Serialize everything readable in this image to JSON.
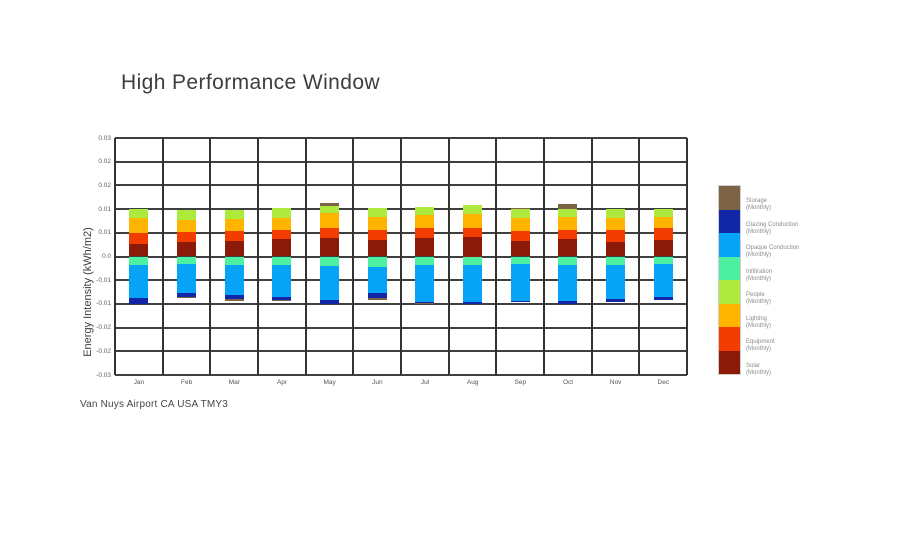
{
  "title": "High Performance Window",
  "caption": "Van Nuys Airport CA USA TMY3",
  "chart_data": {
    "type": "bar",
    "stacked": true,
    "title": "High Performance Window",
    "xlabel": "",
    "ylabel": "Energy Intensity (kWh/m2)",
    "ylim": [
      -0.03,
      0.03
    ],
    "ytick_step": 0.006,
    "ytick_labels": [
      "0.03",
      "0.02",
      "0.02",
      "0.01",
      "0.01",
      "0.0",
      "-0.01",
      "-0.01",
      "-0.02",
      "-0.02",
      "-0.03"
    ],
    "grid": true,
    "legend_position": "right",
    "categories": [
      "Jan",
      "Feb",
      "Mar",
      "Apr",
      "May",
      "Jun",
      "Jul",
      "Aug",
      "Sep",
      "Oct",
      "Nov",
      "Dec"
    ],
    "series": [
      {
        "name": "Storage",
        "legend_label": "Storage",
        "legend_sublabel": "(Monthly)",
        "color": "#7d6345",
        "values": [
          0.0,
          -0.0004,
          -0.0005,
          -0.0003,
          0.0006,
          -0.0004,
          -0.0002,
          0.0,
          0.0003,
          0.0014,
          0.0,
          0.0
        ]
      },
      {
        "name": "Glazing Conduction",
        "legend_label": "Glazing Conduction",
        "legend_sublabel": "(Monthly)",
        "color": "#1226a8",
        "values": [
          -0.0014,
          -0.001,
          -0.0011,
          -0.0007,
          -0.0011,
          -0.0013,
          -0.0004,
          -0.0004,
          -0.0004,
          -0.0007,
          -0.0007,
          -0.0008
        ]
      },
      {
        "name": "Opaque Conduction",
        "legend_label": "Opaque Conduction",
        "legend_sublabel": "(Monthly)",
        "color": "#07a3f7",
        "values": [
          -0.0084,
          -0.0073,
          -0.0075,
          -0.0081,
          -0.0086,
          -0.0067,
          -0.0093,
          -0.0094,
          -0.0092,
          -0.0092,
          -0.0086,
          -0.0082
        ]
      },
      {
        "name": "Infiltration",
        "legend_label": "Infiltration",
        "legend_sublabel": "(Monthly)",
        "color": "#4df0a0",
        "values": [
          -0.0022,
          -0.0019,
          -0.0022,
          -0.0022,
          -0.0024,
          -0.0026,
          -0.0021,
          -0.0022,
          -0.002,
          -0.0021,
          -0.0021,
          -0.002
        ]
      },
      {
        "name": "People",
        "legend_label": "People",
        "legend_sublabel": "(Monthly)",
        "color": "#aee93e",
        "values": [
          0.0024,
          0.0026,
          0.0023,
          0.0024,
          0.002,
          0.0021,
          0.0021,
          0.0023,
          0.0022,
          0.002,
          0.0022,
          0.002
        ]
      },
      {
        "name": "Lighting",
        "legend_label": "Lighting",
        "legend_sublabel": "(Monthly)",
        "color": "#ffb400",
        "values": [
          0.0038,
          0.0029,
          0.003,
          0.003,
          0.0038,
          0.0034,
          0.0034,
          0.0034,
          0.0033,
          0.0033,
          0.0031,
          0.0028
        ]
      },
      {
        "name": "Equipment",
        "legend_label": "Equipment",
        "legend_sublabel": "(Monthly)",
        "color": "#f23c00",
        "values": [
          0.0028,
          0.0026,
          0.0025,
          0.0024,
          0.0025,
          0.0025,
          0.0024,
          0.0023,
          0.0026,
          0.0023,
          0.003,
          0.0029
        ]
      },
      {
        "name": "Solar",
        "legend_label": "Solar",
        "legend_sublabel": "(Monthly)",
        "color": "#8c1a08",
        "values": [
          0.0031,
          0.0037,
          0.004,
          0.0044,
          0.0046,
          0.0042,
          0.0047,
          0.005,
          0.0039,
          0.0044,
          0.0037,
          0.0043
        ]
      }
    ]
  }
}
